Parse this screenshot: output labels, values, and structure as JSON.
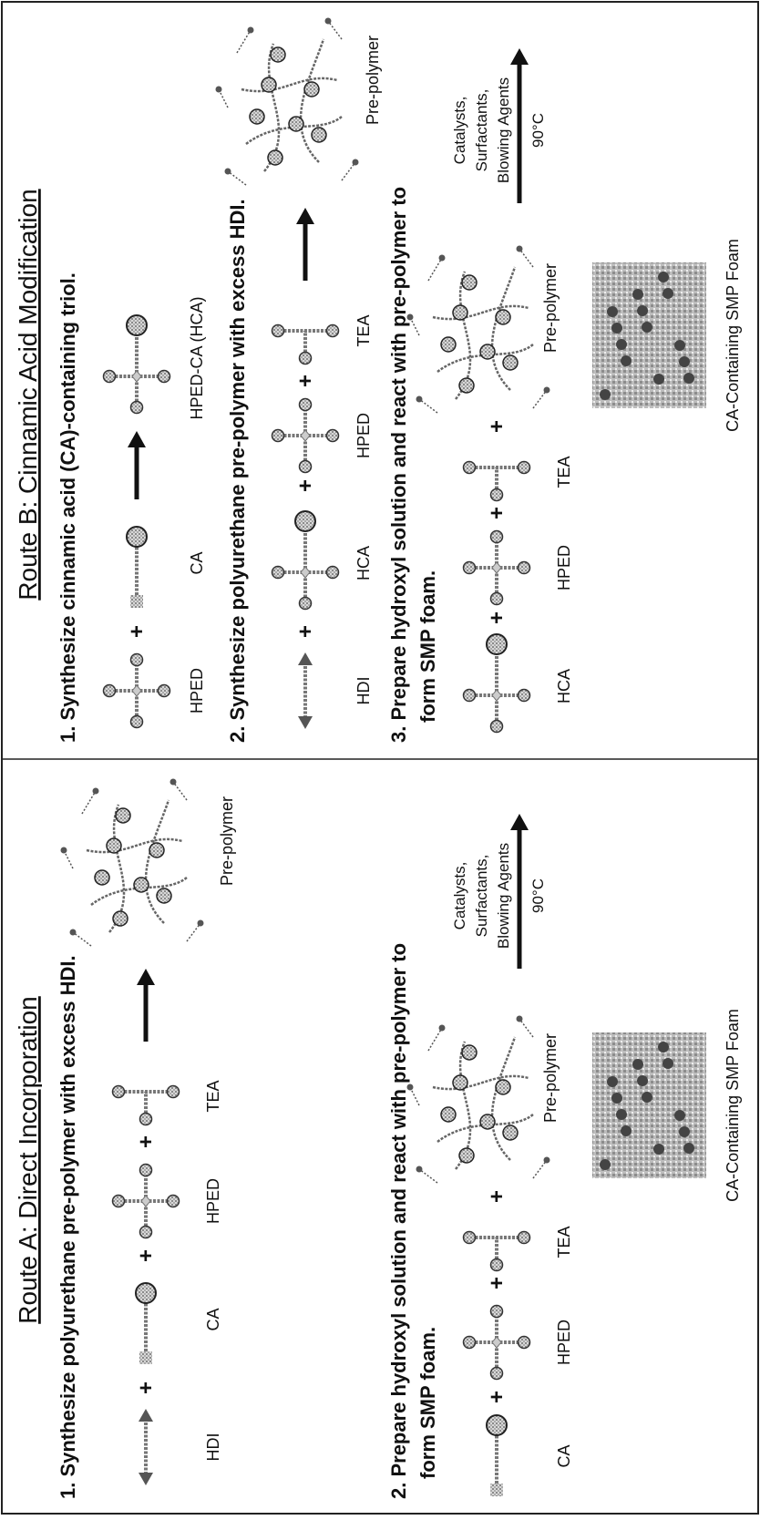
{
  "route_a": {
    "title": "Route A: Direct Incorporation",
    "steps": [
      {
        "text": [
          "1. Synthesize polyurethane pre-polymer with excess HDI."
        ],
        "labels": [
          "HDI",
          "CA",
          "HPED",
          "TEA",
          "Pre-polymer"
        ]
      },
      {
        "text": [
          "2. Prepare hydroxyl solution and react with pre-polymer to",
          "form SMP foam."
        ],
        "labels": [
          "CA",
          "HPED",
          "TEA",
          "Pre-polymer"
        ],
        "conditions": [
          "Catalysts,",
          "Surfactants,",
          "Blowing Agents"
        ],
        "temperature": "90°C",
        "product": "CA-Containing SMP Foam"
      }
    ]
  },
  "route_b": {
    "title": "Route B: Cinnamic Acid Modification",
    "steps": [
      {
        "text": [
          "1. Synthesize cinnamic acid (CA)-containing triol."
        ],
        "labels": [
          "HPED",
          "CA",
          "HPED-CA (HCA)"
        ]
      },
      {
        "text": [
          "2. Synthesize polyurethane pre-polymer with excess HDI."
        ],
        "labels": [
          "HDI",
          "HCA",
          "HPED",
          "TEA",
          "Pre-polymer"
        ]
      },
      {
        "text": [
          "3. Prepare hydroxyl solution and react with pre-polymer to",
          "form SMP foam."
        ],
        "labels": [
          "HCA",
          "HPED",
          "TEA",
          "Pre-polymer"
        ],
        "conditions": [
          "Catalysts,",
          "Surfactants,",
          "Blowing Agents"
        ],
        "temperature": "90°C",
        "product": "CA-Containing SMP Foam"
      }
    ]
  }
}
